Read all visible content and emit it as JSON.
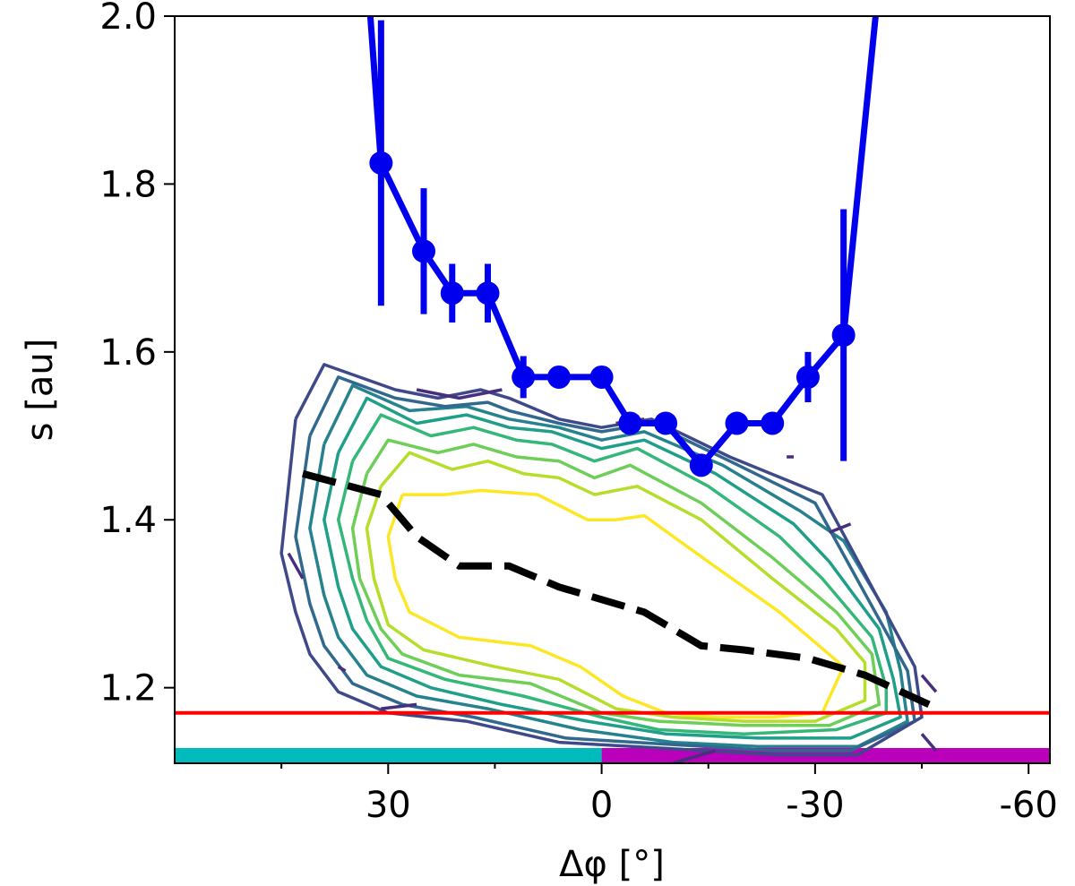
{
  "chart_data": {
    "type": "line",
    "title": "",
    "xlabel": "Δφ [°]",
    "ylabel": "s [au]",
    "xlim": [
      60,
      -63
    ],
    "ylim": [
      1.11,
      2.0
    ],
    "x_reversed": true,
    "xticks": [
      {
        "value": 30,
        "label": "30"
      },
      {
        "value": 0,
        "label": "0"
      },
      {
        "value": -30,
        "label": "-30"
      },
      {
        "value": -60,
        "label": "-60"
      }
    ],
    "xminor_ticks": [
      45,
      15,
      -15,
      -45
    ],
    "yticks": [
      {
        "value": 1.2,
        "label": "1.2"
      },
      {
        "value": 1.4,
        "label": "1.4"
      },
      {
        "value": 1.6,
        "label": "1.6"
      },
      {
        "value": 1.8,
        "label": "1.8"
      },
      {
        "value": 2.0,
        "label": "2.0"
      }
    ],
    "grid": false,
    "series": [
      {
        "color": "#0000ee",
        "style": "solid-with-markers",
        "x": [
          31,
          25,
          21,
          16,
          11,
          6,
          0,
          -4,
          -9,
          -14,
          -19,
          -24,
          -29,
          -34
        ],
        "y": [
          1.825,
          1.72,
          1.67,
          1.67,
          1.57,
          1.57,
          1.57,
          1.515,
          1.515,
          1.465,
          1.515,
          1.515,
          1.57,
          1.62
        ],
        "yerr": [
          0.17,
          0.075,
          0.035,
          0.035,
          0.025,
          0.0,
          0.0,
          0.0,
          0.0,
          0.0,
          0.0,
          0.0,
          0.03,
          0.15
        ],
        "extension_left": {
          "x": 32.5,
          "y": 2.0
        },
        "extension_right": {
          "x": -38.5,
          "y": 2.0
        }
      },
      {
        "color": "#000000",
        "style": "dashed",
        "x": [
          42,
          31,
          26,
          20,
          13,
          6,
          -6,
          -14,
          -20,
          -29,
          -37,
          -46
        ],
        "y": [
          1.455,
          1.43,
          1.38,
          1.345,
          1.345,
          1.32,
          1.29,
          1.25,
          1.245,
          1.235,
          1.215,
          1.18
        ]
      }
    ],
    "hline": {
      "y": 1.17,
      "color": "#ff0000"
    },
    "color_bands": [
      {
        "from": 60,
        "to": 0,
        "color": "#00bbbb"
      },
      {
        "from": 0,
        "to": -63,
        "color": "#bb00bb"
      }
    ],
    "contours": [
      {
        "color": "#fde725",
        "points": [
          [
            28,
            1.43
          ],
          [
            22,
            1.43
          ],
          [
            17,
            1.435
          ],
          [
            9,
            1.43
          ],
          [
            2,
            1.4
          ],
          [
            -2,
            1.4
          ],
          [
            -6,
            1.405
          ],
          [
            -15,
            1.35
          ],
          [
            -25,
            1.29
          ],
          [
            -34,
            1.225
          ],
          [
            -31,
            1.17
          ],
          [
            -24,
            1.165
          ],
          [
            -16,
            1.165
          ],
          [
            -9,
            1.17
          ],
          [
            -3,
            1.19
          ],
          [
            3,
            1.225
          ],
          [
            10,
            1.25
          ],
          [
            20,
            1.26
          ],
          [
            27,
            1.29
          ],
          [
            29,
            1.33
          ],
          [
            30,
            1.38
          ],
          [
            28,
            1.43
          ]
        ]
      },
      {
        "color": "#b5de2b",
        "points": [
          [
            31,
            1.44
          ],
          [
            27,
            1.48
          ],
          [
            21,
            1.46
          ],
          [
            16,
            1.47
          ],
          [
            11,
            1.455
          ],
          [
            6,
            1.45
          ],
          [
            1,
            1.43
          ],
          [
            -5,
            1.44
          ],
          [
            -14,
            1.4
          ],
          [
            -24,
            1.33
          ],
          [
            -33,
            1.27
          ],
          [
            -37,
            1.23
          ],
          [
            -37,
            1.185
          ],
          [
            -30,
            1.16
          ],
          [
            -20,
            1.16
          ],
          [
            -10,
            1.165
          ],
          [
            -2,
            1.175
          ],
          [
            6,
            1.21
          ],
          [
            15,
            1.225
          ],
          [
            25,
            1.245
          ],
          [
            30,
            1.275
          ],
          [
            32,
            1.33
          ],
          [
            33,
            1.39
          ],
          [
            31,
            1.44
          ]
        ]
      },
      {
        "color": "#6ece58",
        "points": [
          [
            33,
            1.455
          ],
          [
            30,
            1.495
          ],
          [
            23,
            1.48
          ],
          [
            18,
            1.49
          ],
          [
            12,
            1.475
          ],
          [
            6,
            1.47
          ],
          [
            1,
            1.45
          ],
          [
            -4,
            1.465
          ],
          [
            -14,
            1.42
          ],
          [
            -24,
            1.355
          ],
          [
            -33,
            1.29
          ],
          [
            -38,
            1.24
          ],
          [
            -39,
            1.18
          ],
          [
            -32,
            1.155
          ],
          [
            -20,
            1.155
          ],
          [
            -8,
            1.16
          ],
          [
            0,
            1.17
          ],
          [
            10,
            1.205
          ],
          [
            20,
            1.215
          ],
          [
            28,
            1.24
          ],
          [
            31,
            1.27
          ],
          [
            34,
            1.33
          ],
          [
            35,
            1.39
          ],
          [
            33,
            1.455
          ]
        ]
      },
      {
        "color": "#35b779",
        "points": [
          [
            35,
            1.47
          ],
          [
            31,
            1.525
          ],
          [
            24,
            1.5
          ],
          [
            18,
            1.51
          ],
          [
            12,
            1.495
          ],
          [
            7,
            1.49
          ],
          [
            1,
            1.47
          ],
          [
            -5,
            1.485
          ],
          [
            -15,
            1.44
          ],
          [
            -25,
            1.38
          ],
          [
            -31,
            1.33
          ],
          [
            -38,
            1.26
          ],
          [
            -40,
            1.2
          ],
          [
            -40,
            1.17
          ],
          [
            -33,
            1.15
          ],
          [
            -20,
            1.145
          ],
          [
            -8,
            1.15
          ],
          [
            0,
            1.165
          ],
          [
            11,
            1.19
          ],
          [
            22,
            1.21
          ],
          [
            30,
            1.235
          ],
          [
            33,
            1.28
          ],
          [
            35,
            1.33
          ],
          [
            37,
            1.4
          ],
          [
            35,
            1.47
          ]
        ]
      },
      {
        "color": "#1f9e89",
        "points": [
          [
            37,
            1.48
          ],
          [
            33,
            1.545
          ],
          [
            26,
            1.515
          ],
          [
            19,
            1.525
          ],
          [
            13,
            1.51
          ],
          [
            7,
            1.505
          ],
          [
            0,
            1.485
          ],
          [
            -6,
            1.495
          ],
          [
            -16,
            1.455
          ],
          [
            -27,
            1.395
          ],
          [
            -32,
            1.35
          ],
          [
            -39,
            1.27
          ],
          [
            -41,
            1.21
          ],
          [
            -42,
            1.165
          ],
          [
            -35,
            1.14
          ],
          [
            -22,
            1.14
          ],
          [
            -9,
            1.145
          ],
          [
            2,
            1.16
          ],
          [
            14,
            1.18
          ],
          [
            24,
            1.2
          ],
          [
            31,
            1.225
          ],
          [
            35,
            1.27
          ],
          [
            37,
            1.32
          ],
          [
            39,
            1.4
          ],
          [
            37,
            1.48
          ]
        ]
      },
      {
        "color": "#26828e",
        "points": [
          [
            39,
            1.49
          ],
          [
            35,
            1.56
          ],
          [
            27,
            1.53
          ],
          [
            19,
            1.535
          ],
          [
            13,
            1.52
          ],
          [
            6,
            1.51
          ],
          [
            0,
            1.495
          ],
          [
            -6,
            1.505
          ],
          [
            -17,
            1.465
          ],
          [
            -28,
            1.41
          ],
          [
            -34,
            1.375
          ],
          [
            -40,
            1.29
          ],
          [
            -42,
            1.22
          ],
          [
            -43,
            1.16
          ],
          [
            -36,
            1.13
          ],
          [
            -22,
            1.13
          ],
          [
            -10,
            1.135
          ],
          [
            3,
            1.15
          ],
          [
            16,
            1.175
          ],
          [
            26,
            1.19
          ],
          [
            33,
            1.215
          ],
          [
            37,
            1.26
          ],
          [
            39,
            1.31
          ],
          [
            41,
            1.39
          ],
          [
            39,
            1.49
          ]
        ]
      },
      {
        "color": "#31688e",
        "points": [
          [
            41,
            1.5
          ],
          [
            37,
            1.57
          ],
          [
            29,
            1.545
          ],
          [
            22,
            1.535
          ],
          [
            16,
            1.54
          ],
          [
            13,
            1.53
          ],
          [
            6,
            1.515
          ],
          [
            0,
            1.505
          ],
          [
            -7,
            1.515
          ],
          [
            -18,
            1.47
          ],
          [
            -30,
            1.42
          ],
          [
            -43,
            1.22
          ],
          [
            -44,
            1.16
          ],
          [
            -35,
            1.125
          ],
          [
            -24,
            1.125
          ],
          [
            5,
            1.14
          ],
          [
            18,
            1.165
          ],
          [
            28,
            1.18
          ],
          [
            35,
            1.205
          ],
          [
            39,
            1.25
          ],
          [
            41,
            1.3
          ],
          [
            43,
            1.38
          ],
          [
            41,
            1.5
          ]
        ]
      },
      {
        "color": "#3e4989",
        "points": [
          [
            43,
            1.52
          ],
          [
            39,
            1.585
          ],
          [
            29,
            1.555
          ],
          [
            23,
            1.545
          ],
          [
            17,
            1.555
          ],
          [
            13,
            1.545
          ],
          [
            6,
            1.52
          ],
          [
            0,
            1.51
          ],
          [
            -7,
            1.52
          ],
          [
            -18,
            1.475
          ],
          [
            -31,
            1.43
          ],
          [
            -44,
            1.225
          ],
          [
            -45,
            1.165
          ],
          [
            -36,
            1.12
          ],
          [
            -25,
            1.12
          ],
          [
            6,
            1.135
          ],
          [
            19,
            1.16
          ],
          [
            30,
            1.17
          ],
          [
            37,
            1.195
          ],
          [
            41,
            1.24
          ],
          [
            43,
            1.29
          ],
          [
            45,
            1.36
          ],
          [
            43,
            1.52
          ]
        ]
      },
      {
        "color": "#472f7d",
        "points": [
          [
            26,
            1.555
          ],
          [
            20,
            1.545
          ],
          [
            14,
            1.555
          ]
        ]
      },
      {
        "color": "#472f7d",
        "points": [
          [
            -2,
            1.515
          ],
          [
            -6,
            1.52
          ]
        ]
      },
      {
        "color": "#472f7d",
        "points": [
          [
            -35,
            1.395
          ],
          [
            -32,
            1.385
          ]
        ]
      },
      {
        "color": "#472f7d",
        "points": [
          [
            -26,
            1.475
          ],
          [
            -27,
            1.475
          ]
        ]
      },
      {
        "color": "#472f7d",
        "points": [
          [
            44,
            1.36
          ],
          [
            42,
            1.33
          ]
        ]
      },
      {
        "color": "#472f7d",
        "points": [
          [
            31,
            1.175
          ],
          [
            26,
            1.18
          ]
        ]
      },
      {
        "color": "#472f7d",
        "points": [
          [
            -45,
            1.215
          ],
          [
            -47,
            1.195
          ]
        ]
      },
      {
        "color": "#472f7d",
        "points": [
          [
            -45,
            1.145
          ],
          [
            -47,
            1.125
          ]
        ]
      },
      {
        "color": "#472f7d",
        "points": [
          [
            -16,
            1.125
          ],
          [
            -10,
            1.11
          ]
        ]
      },
      {
        "color": "#472f7d",
        "points": [
          [
            37,
            1.225
          ],
          [
            36,
            1.22
          ]
        ]
      }
    ]
  }
}
